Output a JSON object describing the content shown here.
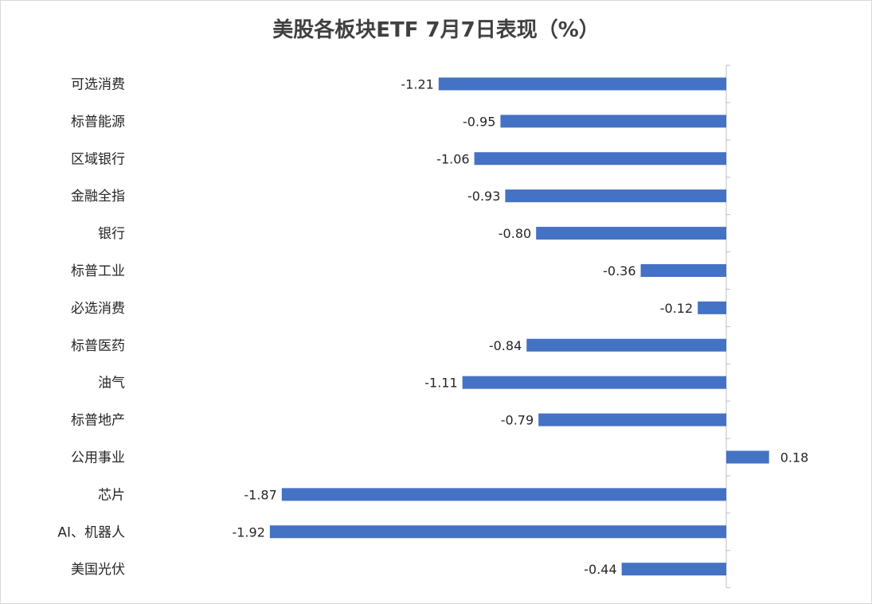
{
  "chart_data": {
    "type": "bar",
    "orientation": "horizontal",
    "title": "美股各板块ETF  7月7日表现（%）",
    "categories": [
      "可选消费",
      "标普能源",
      "区域银行",
      "金融全指",
      "银行",
      "标普工业",
      "必选消费",
      "标普医药",
      "油气",
      "标普地产",
      "公用事业",
      "芯片",
      "AI、机器人",
      "美国光伏"
    ],
    "values": [
      -1.21,
      -0.95,
      -1.06,
      -0.93,
      -0.8,
      -0.36,
      -0.12,
      -0.84,
      -1.11,
      -0.79,
      0.18,
      -1.87,
      -1.92,
      -0.44
    ],
    "value_labels": [
      "-1.21",
      "-0.95",
      "-1.06",
      "-0.93",
      "-0.80",
      "-0.36",
      "-0.12",
      "-0.84",
      "-1.11",
      "-0.79",
      "0.18",
      "-1.87",
      "-1.92",
      "-0.44"
    ],
    "xlim": [
      -2.0,
      0.3
    ],
    "grid": false,
    "legend": "none",
    "bar_color": "#4472C4"
  }
}
